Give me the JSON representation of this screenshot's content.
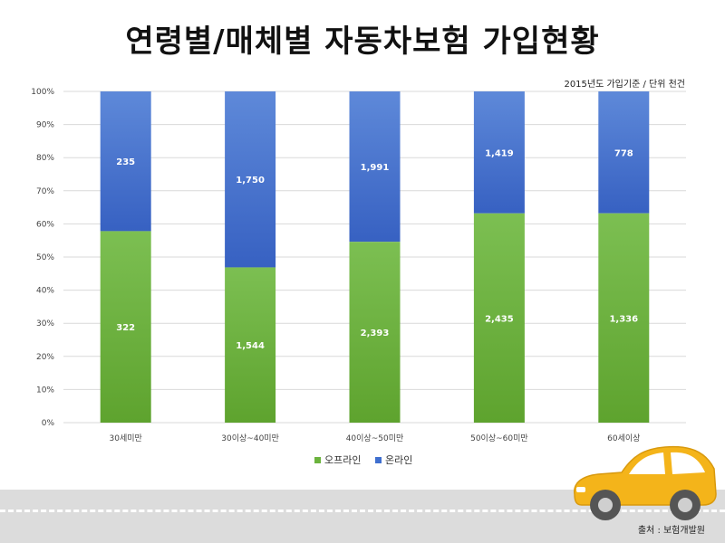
{
  "title": "연령별/매체별 자동차보험 가입현황",
  "note": "2015년도 가입기준 / 단위 천건",
  "source": "출처 : 보험개발원",
  "colors": {
    "offline": "#6bb33d",
    "online": "#3f6fcf"
  },
  "chart_data": {
    "type": "bar",
    "stacked": "percent",
    "categories": [
      "30세미만",
      "30이상~40미만",
      "40이상~50미만",
      "50이상~60미만",
      "60세이상"
    ],
    "series": [
      {
        "name": "오프라인",
        "values": [
          322,
          1544,
          2393,
          2435,
          1336
        ]
      },
      {
        "name": "온라인",
        "values": [
          235,
          1750,
          1991,
          1419,
          778
        ]
      }
    ],
    "data_labels": {
      "offline": [
        "322",
        "1,544",
        "2,393",
        "2,435",
        "1,336"
      ],
      "online": [
        "235",
        "1,750",
        "1,991",
        "1,419",
        "778"
      ]
    },
    "y_ticks": [
      "0%",
      "10%",
      "20%",
      "30%",
      "40%",
      "50%",
      "60%",
      "70%",
      "80%",
      "90%",
      "100%"
    ],
    "ylim": [
      0,
      100
    ],
    "grid": true,
    "legend_position": "bottom"
  }
}
